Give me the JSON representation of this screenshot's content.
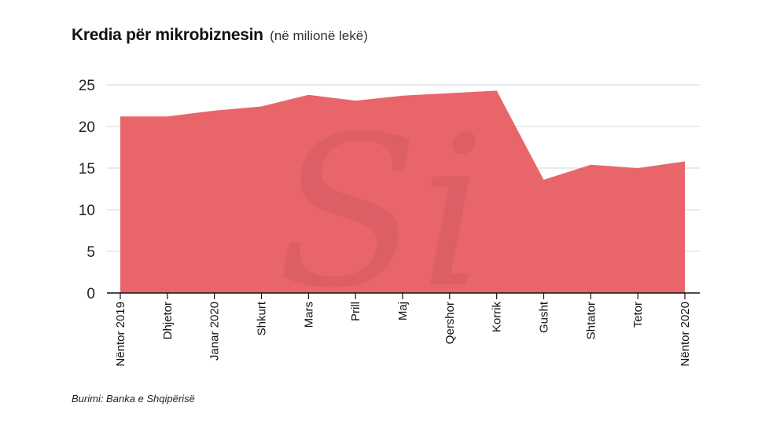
{
  "header": {
    "title": "Kredia për mikrobiznesin",
    "subtitle": "(në milionë lekë)"
  },
  "footer": {
    "source": "Burimi: Banka e Shqipërisë"
  },
  "watermark": {
    "text": "Si"
  },
  "colors": {
    "area": "#e8666a",
    "grid": "#d6d6d6",
    "axis": "#111111",
    "watermark": "#c45458"
  },
  "chart_data": {
    "type": "area",
    "title": "Kredia për mikrobiznesin",
    "subtitle": "(në milionë lekë)",
    "xlabel": "",
    "ylabel": "",
    "categories": [
      "Nëntor 2019",
      "Dhjetor",
      "Janar 2020",
      "Shkurt",
      "Mars",
      "Prill",
      "Maj",
      "Qershor",
      "Korrik",
      "Gusht",
      "Shtator",
      "Tetor",
      "Nëntor 2020"
    ],
    "series": [
      {
        "values": [
          21.2,
          21.2,
          21.9,
          22.4,
          23.8,
          23.1,
          23.7,
          24.0,
          24.3,
          13.6,
          15.4,
          15.0,
          15.8
        ]
      }
    ],
    "yticks": [
      0,
      5,
      10,
      15,
      20,
      25
    ],
    "ylim": [
      0,
      25
    ],
    "grid": true,
    "legend": "none"
  }
}
